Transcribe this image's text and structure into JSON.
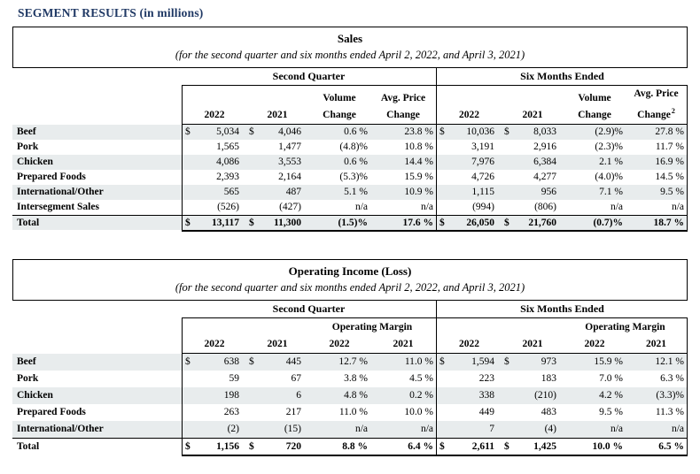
{
  "page_title": "SEGMENT RESULTS (in millions)",
  "currency": "$",
  "colors": {
    "title_navy": "#1f3864",
    "row_shade": "#e8eced",
    "border": "#000000"
  },
  "sales": {
    "title": "Sales",
    "subtitle": "(for the second quarter and six months ended April 2, 2022, and April 3, 2021)",
    "group_left": "Second Quarter",
    "group_right": "Six Months Ended",
    "headers": {
      "y2022": "2022",
      "y2021": "2021",
      "volume": "Volume",
      "avg_price": "Avg. Price",
      "change": "Change",
      "footnote": "2"
    },
    "rows": [
      {
        "label": "Beef",
        "v": [
          "5,034",
          "4,046",
          "0.6 %",
          "23.8 %",
          "10,036",
          "8,033",
          "(2.9)%",
          "27.8 %"
        ]
      },
      {
        "label": "Pork",
        "v": [
          "1,565",
          "1,477",
          "(4.8)%",
          "10.8 %",
          "3,191",
          "2,916",
          "(2.3)%",
          "11.7 %"
        ]
      },
      {
        "label": "Chicken",
        "v": [
          "4,086",
          "3,553",
          "0.6 %",
          "14.4 %",
          "7,976",
          "6,384",
          "2.1 %",
          "16.9 %"
        ]
      },
      {
        "label": "Prepared Foods",
        "v": [
          "2,393",
          "2,164",
          "(5.3)%",
          "15.9 %",
          "4,726",
          "4,277",
          "(4.0)%",
          "14.5 %"
        ]
      },
      {
        "label": "International/Other",
        "v": [
          "565",
          "487",
          "5.1 %",
          "10.9 %",
          "1,115",
          "956",
          "7.1 %",
          "9.5 %"
        ]
      },
      {
        "label": "Intersegment Sales",
        "v": [
          "(526)",
          "(427)",
          "n/a",
          "n/a",
          "(994)",
          "(806)",
          "n/a",
          "n/a"
        ]
      },
      {
        "label": "Total",
        "v": [
          "13,117",
          "11,300",
          "(1.5)%",
          "17.6 %",
          "26,050",
          "21,760",
          "(0.7)%",
          "18.7 %"
        ]
      }
    ]
  },
  "operating_income": {
    "title": "Operating Income (Loss)",
    "subtitle": "(for the second quarter and six months ended April 2, 2022, and April 3, 2021)",
    "group_left": "Second Quarter",
    "group_right": "Six Months Ended",
    "headers": {
      "y2022": "2022",
      "y2021": "2021",
      "operating_margin": "Operating Margin"
    },
    "rows": [
      {
        "label": "Beef",
        "v": [
          "638",
          "445",
          "12.7 %",
          "11.0 %",
          "1,594",
          "973",
          "15.9 %",
          "12.1 %"
        ]
      },
      {
        "label": "Pork",
        "v": [
          "59",
          "67",
          "3.8 %",
          "4.5 %",
          "223",
          "183",
          "7.0 %",
          "6.3 %"
        ]
      },
      {
        "label": "Chicken",
        "v": [
          "198",
          "6",
          "4.8 %",
          "0.2 %",
          "338",
          "(210)",
          "4.2 %",
          "(3.3)%"
        ]
      },
      {
        "label": "Prepared Foods",
        "v": [
          "263",
          "217",
          "11.0 %",
          "10.0 %",
          "449",
          "483",
          "9.5 %",
          "11.3 %"
        ]
      },
      {
        "label": "International/Other",
        "v": [
          "(2)",
          "(15)",
          "n/a",
          "n/a",
          "7",
          "(4)",
          "n/a",
          "n/a"
        ]
      },
      {
        "label": "Total",
        "v": [
          "1,156",
          "720",
          "8.8 %",
          "6.4 %",
          "2,611",
          "1,425",
          "10.0 %",
          "6.5 %"
        ]
      }
    ]
  }
}
